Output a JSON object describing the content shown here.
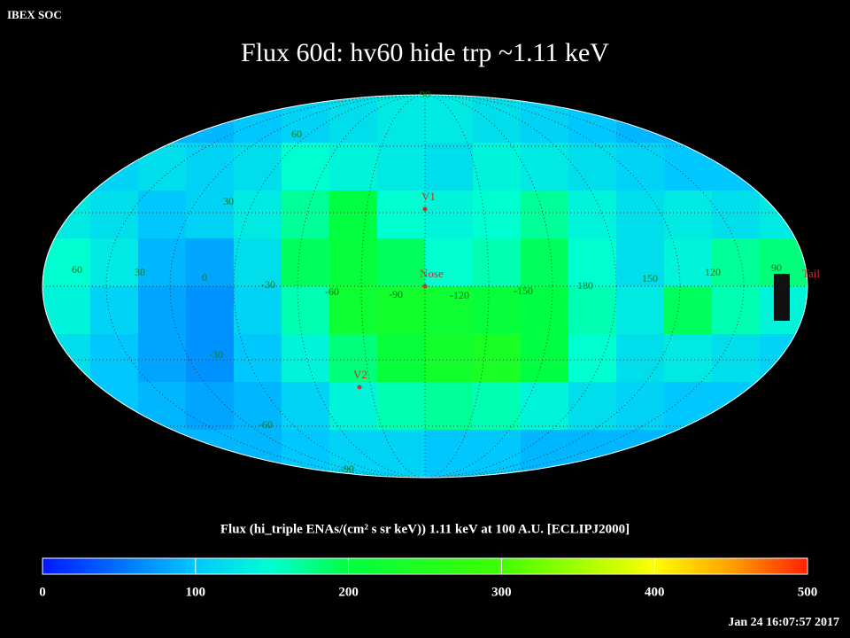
{
  "header": "IBEX SOC",
  "title": "Flux   60d: hv60 hide trp ~1.11 keV",
  "timestamp": "Jan 24 16:07:57 2017",
  "map": {
    "type": "heatmap",
    "projection": "mollweide",
    "values": [
      [
        90,
        90,
        90,
        90,
        100,
        110,
        120,
        130,
        130,
        120,
        110,
        100,
        90,
        90,
        90,
        90
      ],
      [
        100,
        110,
        120,
        110,
        120,
        150,
        140,
        130,
        120,
        140,
        130,
        120,
        110,
        100,
        100,
        100
      ],
      [
        130,
        120,
        100,
        110,
        130,
        170,
        200,
        150,
        140,
        150,
        170,
        140,
        120,
        130,
        120,
        130
      ],
      [
        150,
        130,
        90,
        80,
        120,
        190,
        210,
        190,
        150,
        160,
        190,
        150,
        120,
        140,
        170,
        180
      ],
      [
        140,
        110,
        80,
        70,
        110,
        160,
        220,
        230,
        220,
        210,
        200,
        160,
        130,
        190,
        160,
        140
      ],
      [
        120,
        100,
        80,
        70,
        100,
        140,
        180,
        210,
        230,
        240,
        200,
        150,
        120,
        130,
        120,
        110
      ],
      [
        110,
        100,
        90,
        80,
        90,
        110,
        140,
        160,
        170,
        160,
        140,
        120,
        110,
        100,
        100,
        100
      ],
      [
        90,
        90,
        90,
        90,
        90,
        100,
        110,
        110,
        100,
        100,
        90,
        90,
        90,
        90,
        90,
        90
      ]
    ],
    "lon_labels": [
      "60",
      "30",
      "0",
      "-30",
      "-60",
      "-90",
      "-120",
      "-150",
      "180",
      "150",
      "120",
      "90"
    ],
    "lat_labels": [
      "90",
      "60",
      "30",
      "-30",
      "-60",
      "-90"
    ],
    "markers": [
      "V1",
      "Nose",
      "V2",
      "Tail"
    ]
  },
  "colorbar": {
    "label": "Flux (hi_triple ENAs/(cm² s sr keV))  1.11 keV at 100 A.U. [ECLIPJ2000]",
    "range": [
      0,
      500
    ],
    "ticks": [
      0,
      100,
      200,
      300,
      400,
      500
    ],
    "stops": [
      {
        "value": 0,
        "color": "#0018ff"
      },
      {
        "value": 100,
        "color": "#00c8ff"
      },
      {
        "value": 150,
        "color": "#00ffd0"
      },
      {
        "value": 200,
        "color": "#00ff40"
      },
      {
        "value": 300,
        "color": "#40ff00"
      },
      {
        "value": 400,
        "color": "#ffff00"
      },
      {
        "value": 450,
        "color": "#ffa000"
      },
      {
        "value": 500,
        "color": "#ff2000"
      }
    ]
  }
}
